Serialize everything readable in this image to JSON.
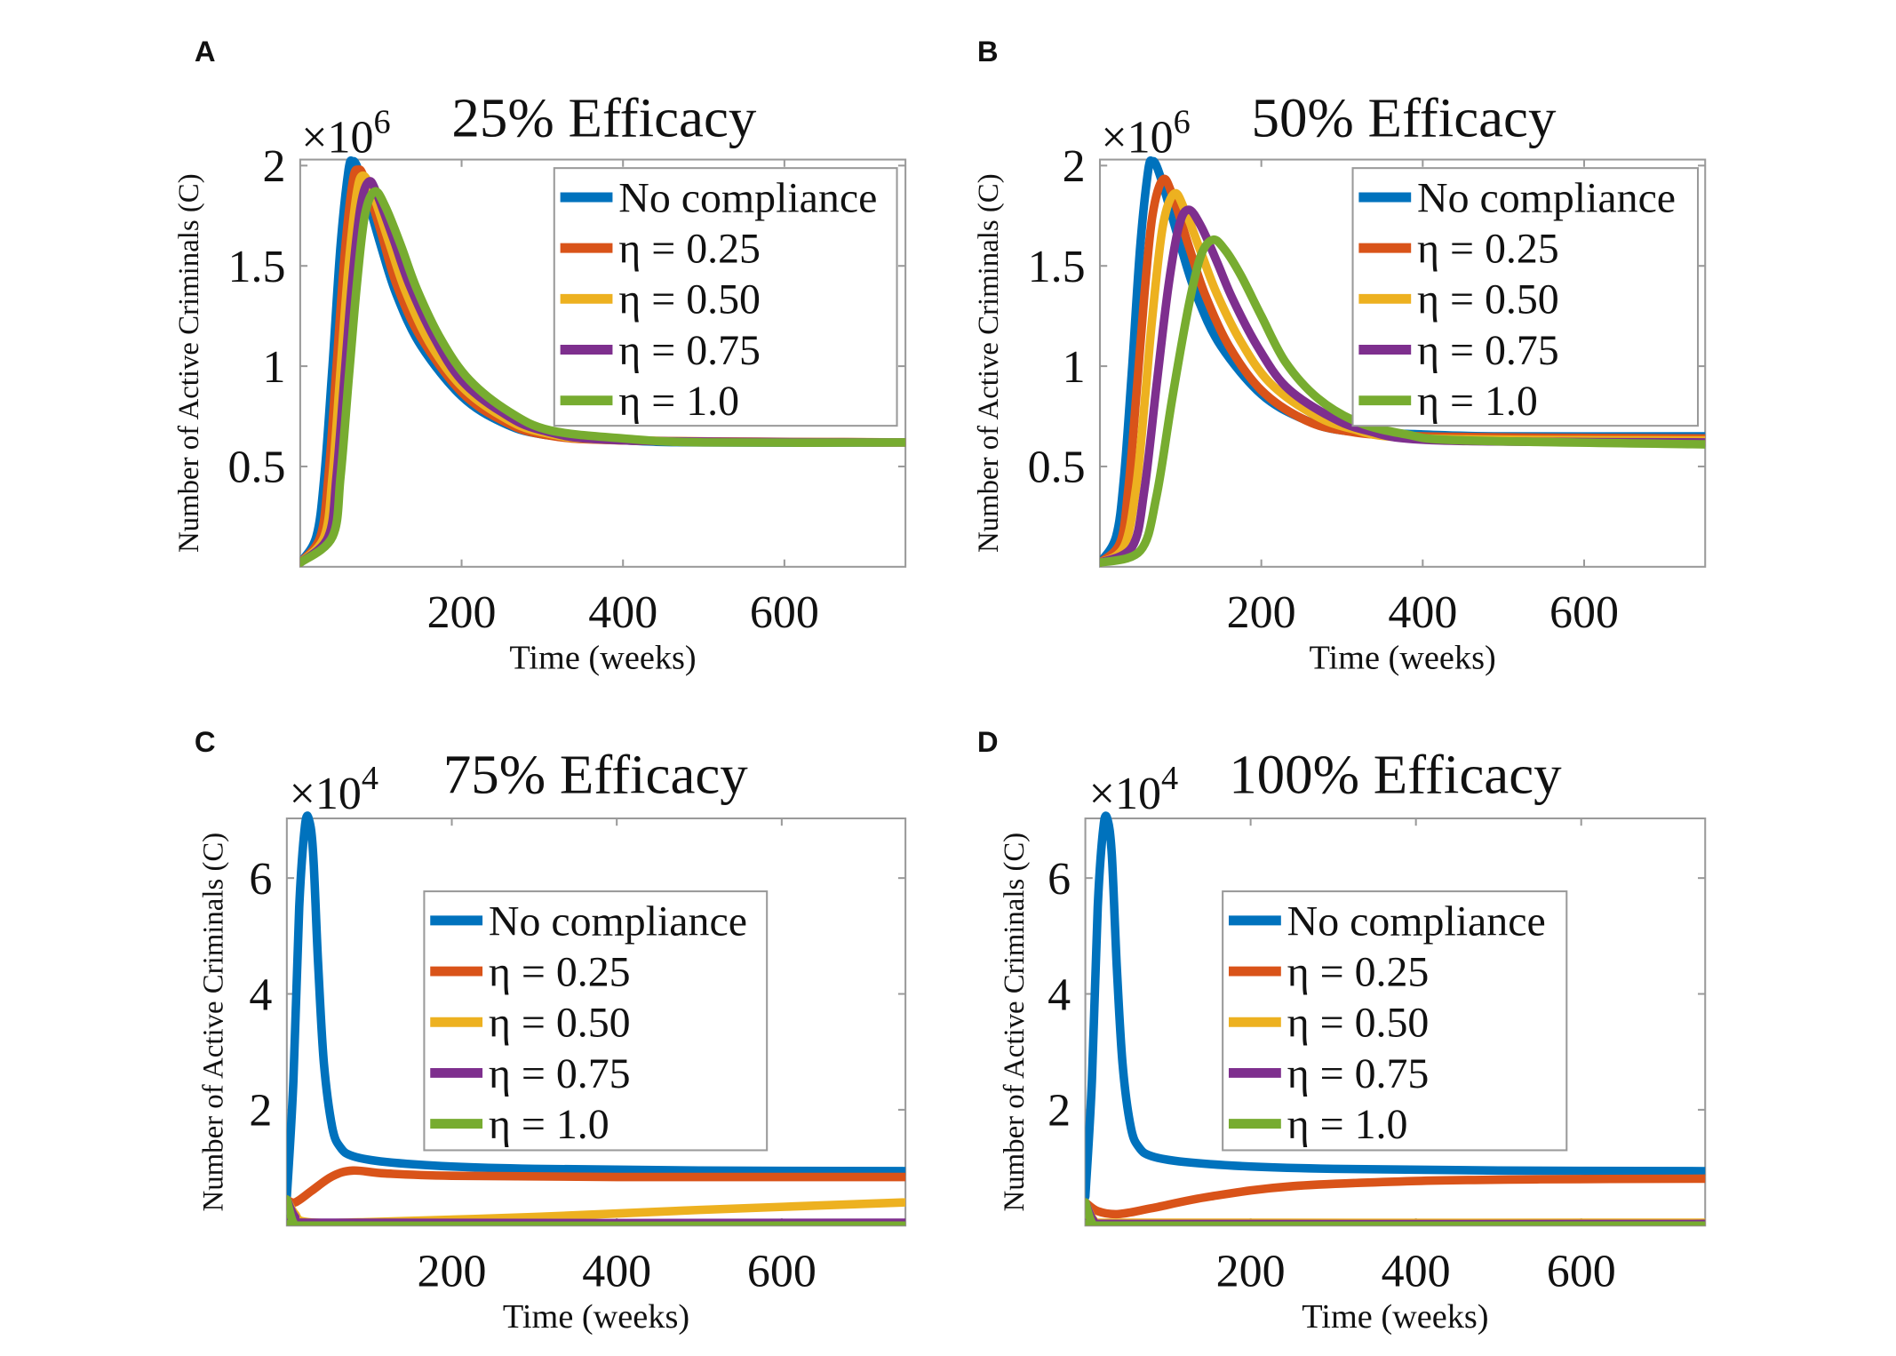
{
  "chart_data": [
    {
      "panel": "A",
      "type": "line",
      "title": "25% Efficacy",
      "multiplier_base": "×10",
      "multiplier_power": "6",
      "xlabel": "Time (weeks)",
      "ylabel": "Number of Active Criminals (C)",
      "xlim": [
        0,
        750
      ],
      "ylim": [
        0,
        2.03
      ],
      "xticks": [
        200,
        400,
        600
      ],
      "xtick_labels": [
        "200",
        "400",
        "600"
      ],
      "yticks": [
        0.5,
        1,
        1.5,
        2
      ],
      "ytick_labels": [
        "0.5",
        "1",
        "1.5",
        "2"
      ],
      "grid": false,
      "legend_placement": "top-right",
      "series": [
        {
          "name": "No compliance",
          "color": "#0072BD",
          "x": [
            0,
            20,
            30,
            40,
            50,
            60,
            65,
            70,
            80,
            100,
            120,
            150,
            200,
            250,
            300,
            400,
            500,
            750
          ],
          "y": [
            0.02,
            0.15,
            0.45,
            1.0,
            1.6,
            1.98,
            2.02,
            2.0,
            1.88,
            1.6,
            1.35,
            1.1,
            0.85,
            0.72,
            0.66,
            0.63,
            0.62,
            0.62
          ]
        },
        {
          "name": "η = 0.25",
          "color": "#D95319",
          "x": [
            0,
            25,
            35,
            45,
            55,
            65,
            72,
            80,
            100,
            120,
            150,
            200,
            250,
            300,
            400,
            750
          ],
          "y": [
            0.02,
            0.15,
            0.45,
            1.0,
            1.55,
            1.92,
            1.98,
            1.93,
            1.67,
            1.4,
            1.14,
            0.87,
            0.73,
            0.66,
            0.63,
            0.62
          ]
        },
        {
          "name": "η = 0.50",
          "color": "#EDB120",
          "x": [
            0,
            30,
            40,
            50,
            60,
            70,
            78,
            90,
            110,
            130,
            160,
            200,
            250,
            300,
            400,
            750
          ],
          "y": [
            0.02,
            0.15,
            0.45,
            0.98,
            1.5,
            1.86,
            1.95,
            1.86,
            1.62,
            1.38,
            1.12,
            0.9,
            0.75,
            0.67,
            0.63,
            0.62
          ]
        },
        {
          "name": "η = 0.75",
          "color": "#7E2F8E",
          "x": [
            0,
            35,
            45,
            55,
            65,
            75,
            85,
            95,
            115,
            135,
            165,
            200,
            250,
            300,
            400,
            750
          ],
          "y": [
            0.02,
            0.15,
            0.45,
            0.95,
            1.45,
            1.8,
            1.92,
            1.86,
            1.64,
            1.41,
            1.15,
            0.93,
            0.77,
            0.68,
            0.63,
            0.62
          ]
        },
        {
          "name": "η = 1.0",
          "color": "#77AC30",
          "x": [
            0,
            40,
            50,
            60,
            70,
            80,
            92,
            105,
            125,
            145,
            175,
            210,
            260,
            310,
            400,
            500,
            750
          ],
          "y": [
            0.02,
            0.15,
            0.45,
            0.93,
            1.4,
            1.75,
            1.87,
            1.8,
            1.6,
            1.38,
            1.13,
            0.93,
            0.77,
            0.68,
            0.64,
            0.62,
            0.62
          ]
        }
      ]
    },
    {
      "panel": "B",
      "type": "line",
      "title": "50% Efficacy",
      "multiplier_base": "×10",
      "multiplier_power": "6",
      "xlabel": "Time (weeks)",
      "ylabel": "Number of Active Criminals (C)",
      "xlim": [
        0,
        750
      ],
      "ylim": [
        0,
        2.03
      ],
      "xticks": [
        200,
        400,
        600
      ],
      "xtick_labels": [
        "200",
        "400",
        "600"
      ],
      "yticks": [
        0.5,
        1,
        1.5,
        2
      ],
      "ytick_labels": [
        "0.5",
        "1",
        "1.5",
        "2"
      ],
      "grid": false,
      "legend_placement": "top-right",
      "series": [
        {
          "name": "No compliance",
          "color": "#0072BD",
          "x": [
            0,
            20,
            30,
            40,
            50,
            60,
            65,
            70,
            80,
            100,
            120,
            150,
            200,
            250,
            300,
            400,
            500,
            750
          ],
          "y": [
            0.02,
            0.15,
            0.45,
            1.0,
            1.6,
            1.98,
            2.02,
            2.0,
            1.88,
            1.6,
            1.35,
            1.1,
            0.86,
            0.74,
            0.68,
            0.66,
            0.65,
            0.65
          ]
        },
        {
          "name": "η = 0.25",
          "color": "#D95319",
          "x": [
            0,
            25,
            35,
            45,
            55,
            65,
            78,
            90,
            110,
            130,
            160,
            200,
            250,
            300,
            400,
            750
          ],
          "y": [
            0.02,
            0.12,
            0.38,
            0.85,
            1.35,
            1.75,
            1.93,
            1.85,
            1.6,
            1.36,
            1.1,
            0.88,
            0.74,
            0.68,
            0.65,
            0.64
          ]
        },
        {
          "name": "η = 0.50",
          "color": "#EDB120",
          "x": [
            0,
            30,
            45,
            55,
            65,
            78,
            92,
            105,
            125,
            145,
            175,
            210,
            260,
            310,
            400,
            750
          ],
          "y": [
            0.02,
            0.1,
            0.4,
            0.8,
            1.25,
            1.7,
            1.86,
            1.78,
            1.57,
            1.36,
            1.12,
            0.92,
            0.77,
            0.69,
            0.64,
            0.63
          ]
        },
        {
          "name": "η = 0.75",
          "color": "#7E2F8E",
          "x": [
            0,
            40,
            55,
            70,
            85,
            98,
            110,
            125,
            145,
            165,
            195,
            230,
            280,
            330,
            420,
            750
          ],
          "y": [
            0.02,
            0.1,
            0.38,
            0.9,
            1.4,
            1.7,
            1.78,
            1.7,
            1.52,
            1.33,
            1.1,
            0.9,
            0.76,
            0.68,
            0.63,
            0.62
          ]
        },
        {
          "name": "η = 1.0",
          "color": "#77AC30",
          "x": [
            0,
            50,
            70,
            90,
            110,
            125,
            140,
            155,
            175,
            200,
            230,
            270,
            320,
            380,
            450,
            750
          ],
          "y": [
            0.02,
            0.08,
            0.35,
            0.85,
            1.3,
            1.55,
            1.63,
            1.58,
            1.45,
            1.25,
            1.02,
            0.84,
            0.72,
            0.66,
            0.63,
            0.61
          ]
        }
      ]
    },
    {
      "panel": "C",
      "type": "line",
      "title": "75% Efficacy",
      "multiplier_base": "×10",
      "multiplier_power": "4",
      "xlabel": "Time (weeks)",
      "ylabel": "Number of Active Criminals (C)",
      "xlim": [
        0,
        750
      ],
      "ylim": [
        0,
        7.03
      ],
      "xticks": [
        200,
        400,
        600
      ],
      "xtick_labels": [
        "200",
        "400",
        "600"
      ],
      "yticks": [
        2,
        4,
        6
      ],
      "ytick_labels": [
        "2",
        "4",
        "6"
      ],
      "grid": false,
      "legend_placement": "center",
      "series": [
        {
          "name": "No compliance",
          "color": "#0072BD",
          "x": [
            0,
            8,
            15,
            22,
            27,
            32,
            38,
            45,
            55,
            65,
            80,
            120,
            200,
            300,
            500,
            750
          ],
          "y": [
            0.5,
            2.5,
            5.5,
            6.9,
            7.0,
            6.4,
            4.5,
            2.8,
            1.7,
            1.35,
            1.2,
            1.1,
            1.02,
            0.98,
            0.95,
            0.94
          ]
        },
        {
          "name": "η = 0.25",
          "color": "#D95319",
          "x": [
            0,
            10,
            30,
            55,
            80,
            120,
            200,
            400,
            750
          ],
          "y": [
            0.45,
            0.4,
            0.6,
            0.85,
            0.95,
            0.9,
            0.86,
            0.84,
            0.84
          ]
        },
        {
          "name": "η = 0.50",
          "color": "#EDB120",
          "x": [
            0,
            10,
            25,
            100,
            300,
            500,
            750
          ],
          "y": [
            0.45,
            0.2,
            0.06,
            0.06,
            0.15,
            0.27,
            0.4
          ]
        },
        {
          "name": "η = 0.75",
          "color": "#7E2F8E",
          "x": [
            0,
            10,
            25,
            750
          ],
          "y": [
            0.45,
            0.15,
            0.05,
            0.05
          ]
        },
        {
          "name": "η = 1.0",
          "color": "#77AC30",
          "x": [
            0,
            8,
            20,
            750
          ],
          "y": [
            0.45,
            0.05,
            0.0,
            0.0
          ]
        }
      ]
    },
    {
      "panel": "D",
      "type": "line",
      "title": "100% Efficacy",
      "multiplier_base": "×10",
      "multiplier_power": "4",
      "xlabel": "Time (weeks)",
      "ylabel": "Number of Active Criminals (C)",
      "xlim": [
        0,
        750
      ],
      "ylim": [
        0,
        7.03
      ],
      "xticks": [
        200,
        400,
        600
      ],
      "xtick_labels": [
        "200",
        "400",
        "600"
      ],
      "yticks": [
        2,
        4,
        6
      ],
      "ytick_labels": [
        "2",
        "4",
        "6"
      ],
      "grid": false,
      "legend_placement": "center",
      "series": [
        {
          "name": "No compliance",
          "color": "#0072BD",
          "x": [
            0,
            8,
            15,
            22,
            27,
            32,
            38,
            45,
            55,
            65,
            80,
            120,
            200,
            300,
            500,
            750
          ],
          "y": [
            0.5,
            2.5,
            5.5,
            6.9,
            7.0,
            6.4,
            4.5,
            2.8,
            1.7,
            1.35,
            1.2,
            1.1,
            1.02,
            0.98,
            0.95,
            0.94
          ]
        },
        {
          "name": "η = 0.25",
          "color": "#D95319",
          "x": [
            0,
            15,
            40,
            80,
            150,
            250,
            400,
            550,
            750
          ],
          "y": [
            0.4,
            0.25,
            0.2,
            0.3,
            0.5,
            0.68,
            0.77,
            0.8,
            0.81
          ]
        },
        {
          "name": "η = 0.50",
          "color": "#EDB120",
          "x": [
            0,
            10,
            25,
            750
          ],
          "y": [
            0.4,
            0.1,
            0.05,
            0.05
          ]
        },
        {
          "name": "η = 0.75",
          "color": "#7E2F8E",
          "x": [
            0,
            10,
            25,
            750
          ],
          "y": [
            0.4,
            0.08,
            0.03,
            0.03
          ]
        },
        {
          "name": "η = 1.0",
          "color": "#77AC30",
          "x": [
            0,
            8,
            20,
            750
          ],
          "y": [
            0.4,
            0.05,
            0.0,
            0.0
          ]
        }
      ]
    }
  ]
}
